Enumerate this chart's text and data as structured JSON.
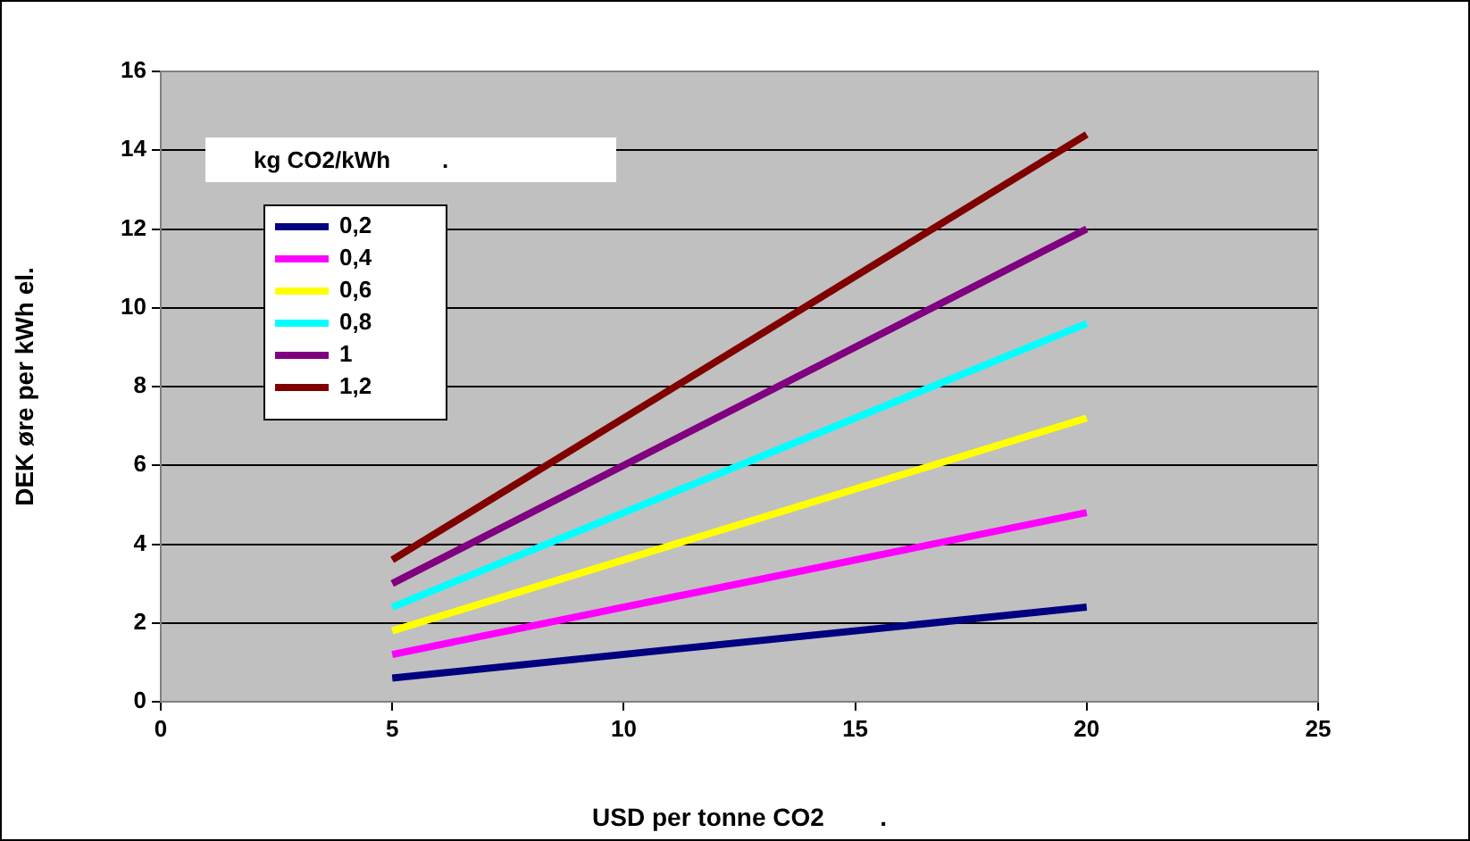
{
  "chart_data": {
    "type": "line",
    "xlabel": "USD per tonne CO2        .",
    "ylabel": "DEK øre per kWh el.",
    "legend_title": "kg CO2/kWh        .",
    "x": [
      5,
      20
    ],
    "series": [
      {
        "name": "0,2",
        "color": "#000080",
        "values": [
          0.6,
          2.4
        ]
      },
      {
        "name": "0,4",
        "color": "#ff00ff",
        "values": [
          1.2,
          4.8
        ]
      },
      {
        "name": "0,6",
        "color": "#ffff00",
        "values": [
          1.8,
          7.2
        ]
      },
      {
        "name": "0,8",
        "color": "#00ffff",
        "values": [
          2.4,
          9.6
        ]
      },
      {
        "name": "1",
        "color": "#800080",
        "values": [
          3,
          12
        ]
      },
      {
        "name": "1,2",
        "color": "#800000",
        "values": [
          3.6,
          14.4
        ]
      }
    ],
    "xlim": [
      0,
      25
    ],
    "xticks": [
      0,
      5,
      10,
      15,
      20,
      25
    ],
    "ylim": [
      0,
      16
    ],
    "yticks": [
      0,
      2,
      4,
      6,
      8,
      10,
      12,
      14,
      16
    ],
    "grid": "y",
    "legend": "top left",
    "marker": "none",
    "line_style": "solid"
  }
}
